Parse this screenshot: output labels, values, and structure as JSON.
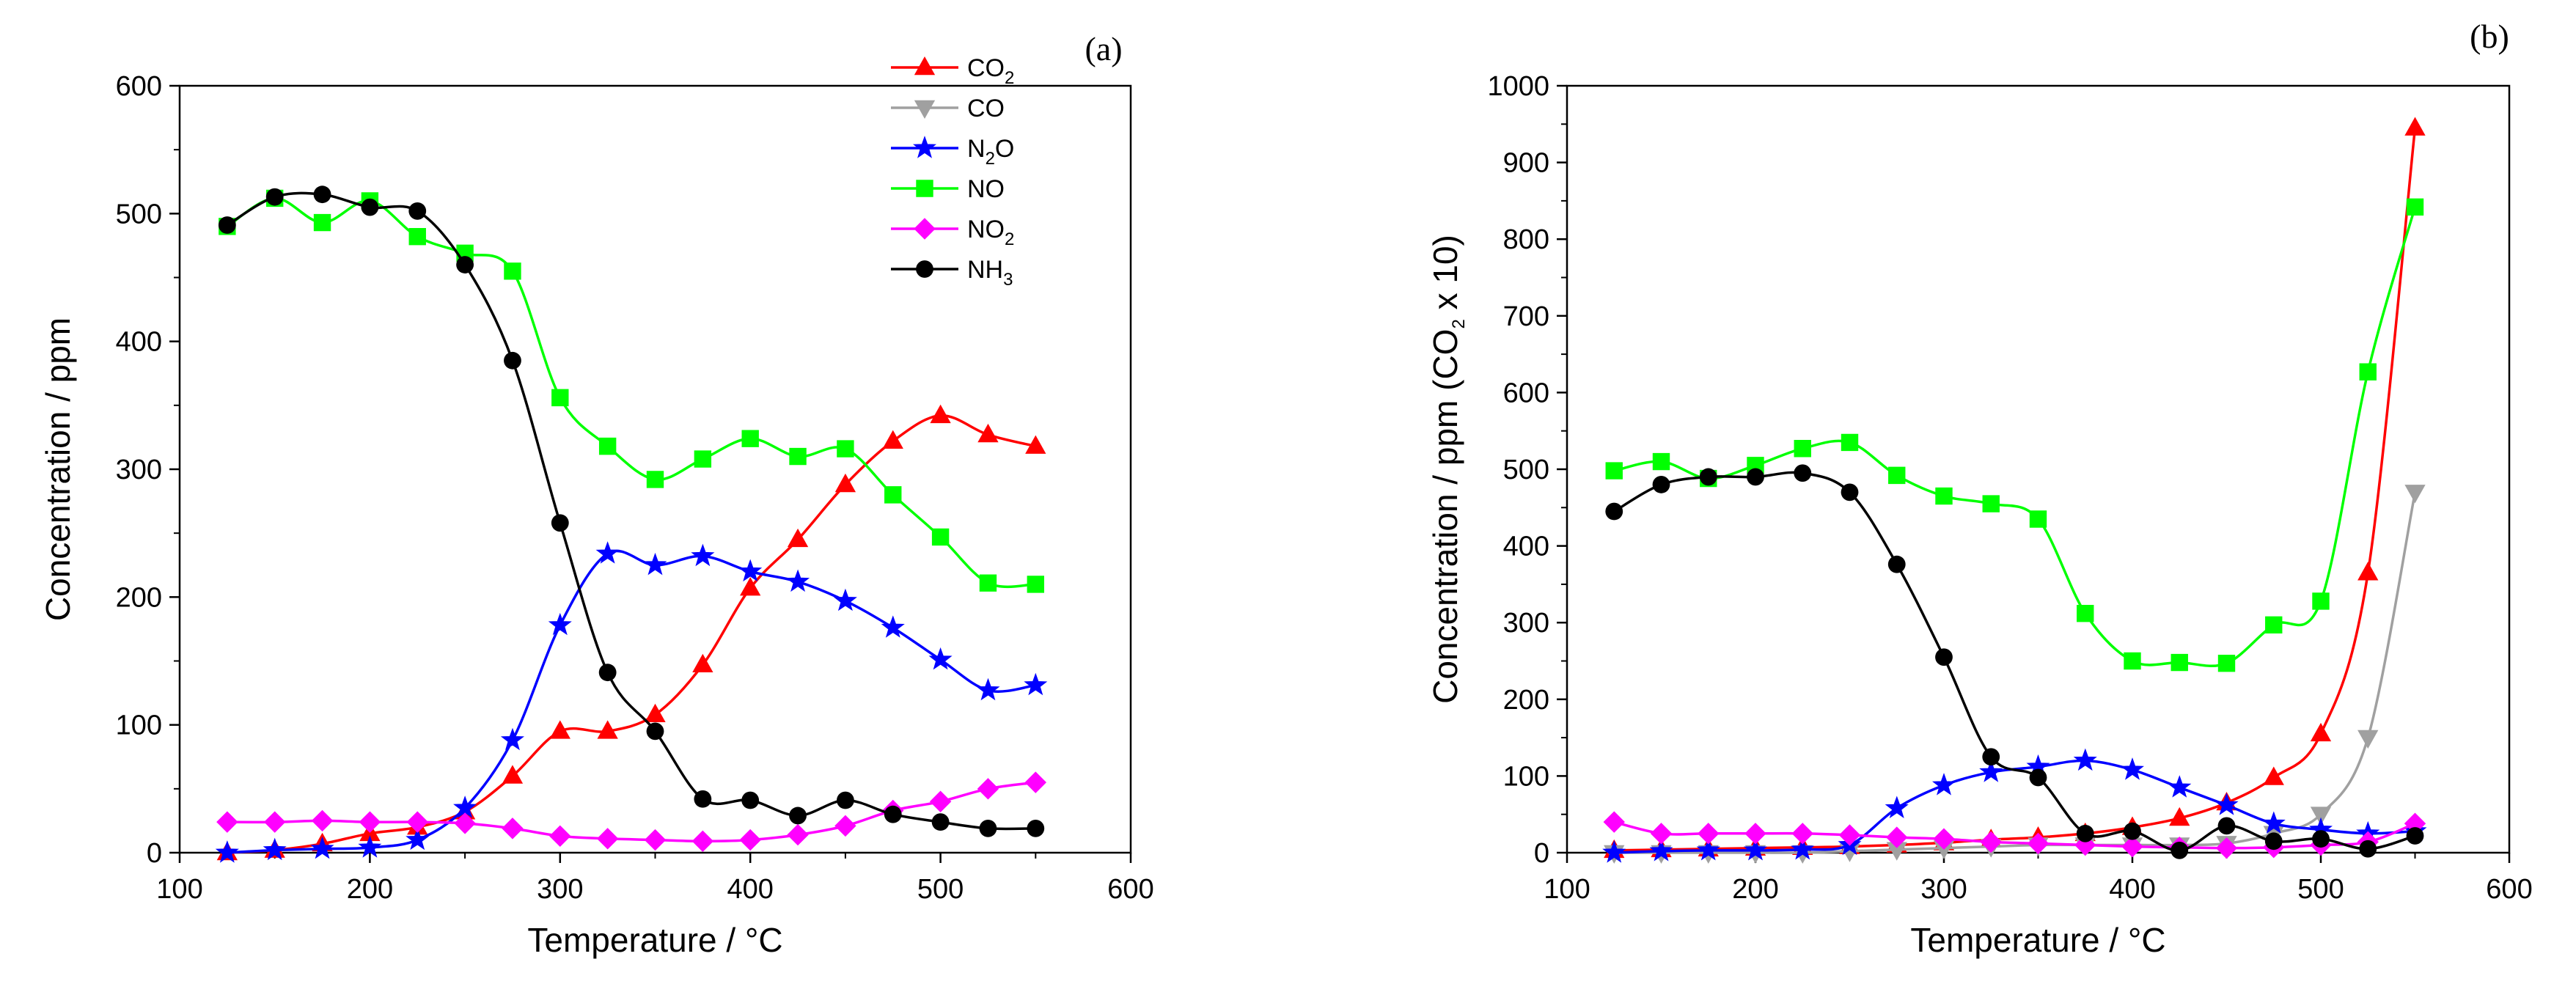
{
  "chart_data": [
    {
      "panel_label": "(a)",
      "type": "line",
      "xlabel": "Temperature / °C",
      "ylabel": "Concentration / ppm",
      "xlim": [
        100,
        600
      ],
      "ylim": [
        0,
        600
      ],
      "x_ticks": [
        100,
        200,
        300,
        400,
        500,
        600
      ],
      "y_ticks": [
        0,
        100,
        200,
        300,
        400,
        500,
        600
      ],
      "legend_position": "top-right",
      "x": [
        125,
        150,
        175,
        200,
        225,
        250,
        275,
        300,
        325,
        350,
        375,
        400,
        425,
        450,
        475,
        500,
        525,
        550
      ],
      "series": [
        {
          "name": "CO2",
          "label_main": "CO",
          "label_sub": "2",
          "label_tail": "",
          "color": "#ff0000",
          "marker": "triangle-up",
          "show_in_legend": true,
          "values": [
            0,
            2,
            7,
            15,
            20,
            32,
            60,
            95,
            95,
            108,
            147,
            207,
            245,
            288,
            322,
            342,
            327,
            318
          ]
        },
        {
          "name": "CO",
          "label_main": "CO",
          "label_sub": "",
          "label_tail": "",
          "color": "#a0a0a0",
          "marker": "triangle-down",
          "show_in_legend": true,
          "values": null
        },
        {
          "name": "N2O",
          "label_main": "N",
          "label_sub": "2",
          "label_tail": "O",
          "color": "#0000ff",
          "marker": "star",
          "show_in_legend": true,
          "values": [
            0,
            2,
            3,
            4,
            10,
            35,
            88,
            178,
            234,
            225,
            232,
            220,
            212,
            197,
            176,
            151,
            127,
            131
          ]
        },
        {
          "name": "NO",
          "label_main": "NO",
          "label_sub": "",
          "label_tail": "",
          "color": "#00ff00",
          "marker": "square",
          "show_in_legend": true,
          "values": [
            490,
            512,
            493,
            510,
            482,
            469,
            455,
            356,
            318,
            292,
            308,
            324,
            310,
            316,
            280,
            247,
            211,
            210
          ]
        },
        {
          "name": "NO2",
          "label_main": "NO",
          "label_sub": "2",
          "label_tail": "",
          "color": "#ff00ff",
          "marker": "diamond",
          "show_in_legend": true,
          "values": [
            24,
            24,
            25,
            24,
            24,
            23,
            19,
            13,
            11,
            10,
            9,
            10,
            14,
            21,
            33,
            40,
            50,
            55
          ]
        },
        {
          "name": "NH3",
          "label_main": "NH",
          "label_sub": "3",
          "label_tail": "",
          "color": "#000000",
          "marker": "circle",
          "show_in_legend": true,
          "values": [
            491,
            513,
            515,
            505,
            502,
            460,
            385,
            258,
            141,
            95,
            42,
            41,
            29,
            41,
            30,
            24,
            19,
            19
          ]
        }
      ]
    },
    {
      "panel_label": "(b)",
      "type": "line",
      "xlabel": "Temperature / °C",
      "ylabel_main": "Concentration / ppm (CO",
      "ylabel_sub": "2",
      "ylabel_tail": " x 10)",
      "xlim": [
        100,
        600
      ],
      "ylim": [
        0,
        1000
      ],
      "x_ticks": [
        100,
        200,
        300,
        400,
        500,
        600
      ],
      "y_ticks": [
        0,
        100,
        200,
        300,
        400,
        500,
        600,
        700,
        800,
        900,
        1000
      ],
      "x": [
        125,
        150,
        175,
        200,
        225,
        250,
        275,
        300,
        325,
        350,
        375,
        400,
        425,
        450,
        475,
        500,
        525,
        550
      ],
      "series": [
        {
          "name": "CO2",
          "color": "#ff0000",
          "marker": "triangle-up",
          "values": [
            3,
            4,
            5,
            6,
            7,
            8,
            10,
            13,
            17,
            20,
            25,
            33,
            45,
            65,
            98,
            155,
            365,
            945
          ]
        },
        {
          "name": "CO",
          "color": "#a0a0a0",
          "marker": "triangle-down",
          "values": [
            0,
            0,
            0,
            0,
            0,
            2,
            4,
            6,
            8,
            10,
            10,
            10,
            10,
            12,
            25,
            50,
            150,
            470
          ]
        },
        {
          "name": "N2O",
          "color": "#0000ff",
          "marker": "star",
          "values": [
            0,
            2,
            3,
            3,
            4,
            10,
            58,
            88,
            105,
            112,
            120,
            108,
            85,
            62,
            38,
            30,
            25,
            28
          ]
        },
        {
          "name": "NO",
          "color": "#00ff00",
          "marker": "square",
          "values": [
            498,
            510,
            488,
            505,
            527,
            535,
            492,
            465,
            455,
            435,
            312,
            250,
            248,
            247,
            297,
            328,
            627,
            842
          ]
        },
        {
          "name": "NO2",
          "color": "#ff00ff",
          "marker": "diamond",
          "values": [
            40,
            25,
            25,
            25,
            25,
            23,
            20,
            18,
            14,
            12,
            10,
            8,
            7,
            6,
            7,
            10,
            14,
            38
          ]
        },
        {
          "name": "NH3",
          "color": "#000000",
          "marker": "circle",
          "values": [
            445,
            480,
            490,
            490,
            495,
            470,
            376,
            255,
            125,
            98,
            25,
            28,
            3,
            35,
            15,
            18,
            5,
            22
          ]
        }
      ]
    }
  ]
}
